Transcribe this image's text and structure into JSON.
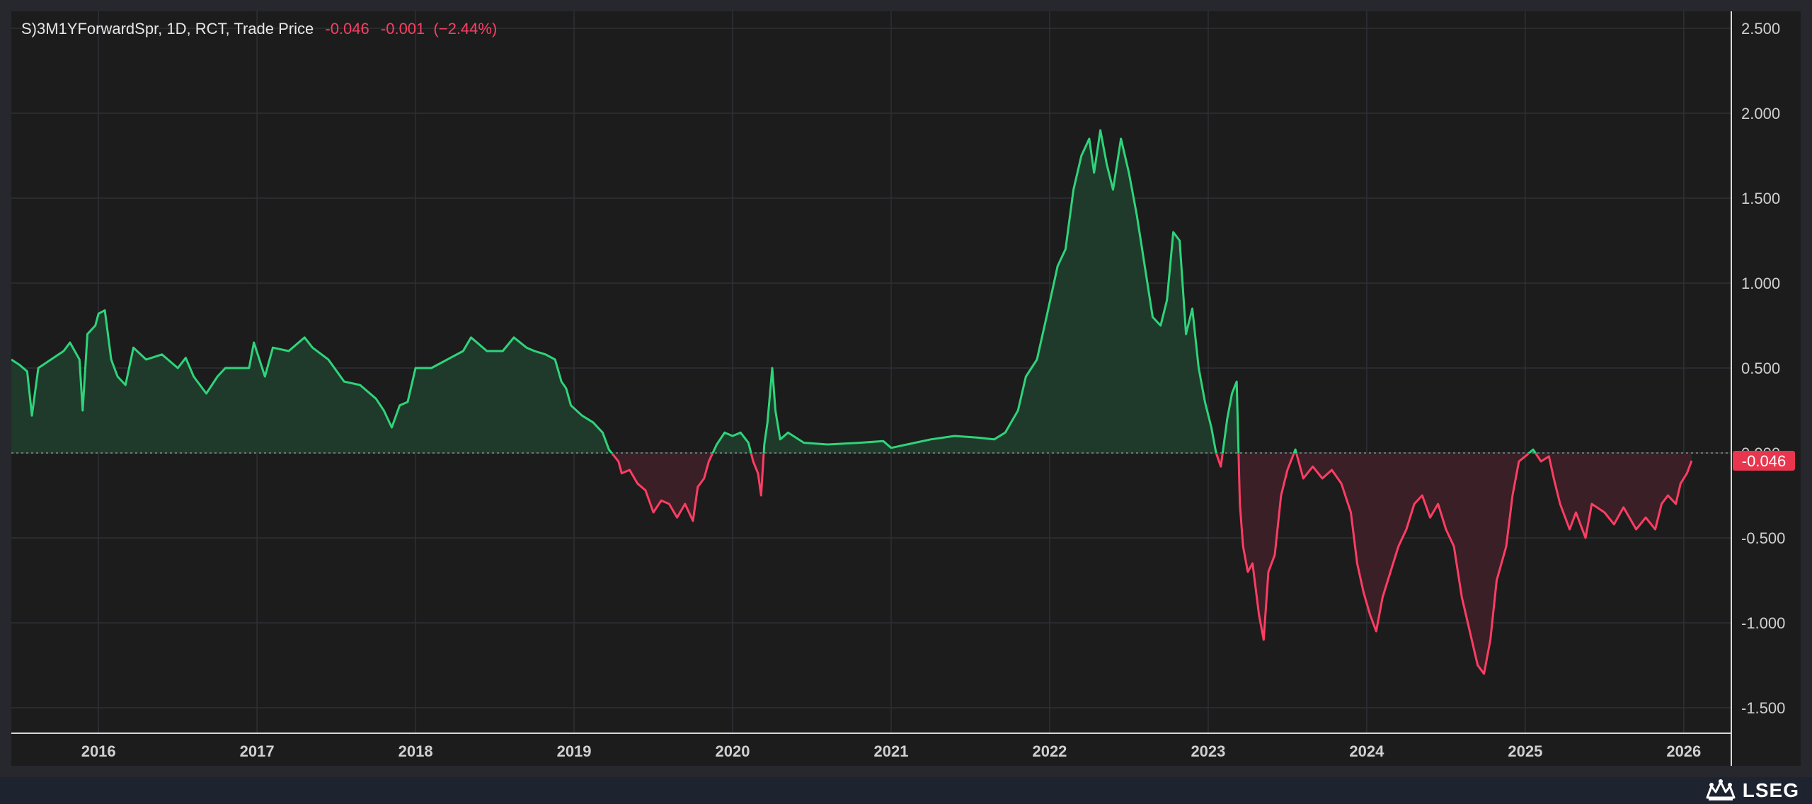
{
  "legend": {
    "symbol": "S)3M1YForwardSpr, 1D, RCT, Trade Price",
    "last": "-0.046",
    "change": "-0.001",
    "change_pct": "(−2.44%)"
  },
  "brand": {
    "name": "LSEG",
    "logo": "lseg-logo-icon"
  },
  "chart_data": {
    "type": "line",
    "title": "S)3M1YForwardSpr, 1D, RCT, Trade Price",
    "xlabel": "",
    "ylabel": "",
    "xlim": [
      2015.45,
      2026.3
    ],
    "ylim": [
      -1.65,
      2.6
    ],
    "x_ticks": [
      {
        "value": 2016,
        "label": "2016"
      },
      {
        "value": 2017,
        "label": "2017"
      },
      {
        "value": 2018,
        "label": "2018"
      },
      {
        "value": 2019,
        "label": "2019"
      },
      {
        "value": 2020,
        "label": "2020"
      },
      {
        "value": 2021,
        "label": "2021"
      },
      {
        "value": 2022,
        "label": "2022"
      },
      {
        "value": 2023,
        "label": "2023"
      },
      {
        "value": 2024,
        "label": "2024"
      },
      {
        "value": 2025,
        "label": "2025"
      },
      {
        "value": 2026,
        "label": "2026"
      }
    ],
    "y_ticks": [
      {
        "value": 2.5,
        "label": "2.500"
      },
      {
        "value": 2.0,
        "label": "2.000"
      },
      {
        "value": 1.5,
        "label": "1.500"
      },
      {
        "value": 1.0,
        "label": "1.000"
      },
      {
        "value": 0.5,
        "label": "0.500"
      },
      {
        "value": 0.0,
        "label": "0.000"
      },
      {
        "value": -0.5,
        "label": "-0.500"
      },
      {
        "value": -1.0,
        "label": "-1.000"
      },
      {
        "value": -1.5,
        "label": "-1.500"
      }
    ],
    "baseline": 0,
    "last_value": -0.046,
    "last_label": "-0.046",
    "grid": true,
    "colors": {
      "positive_line": "#2ed47a",
      "negative_line": "#ff3d63",
      "positive_fill": "#1f3a2b",
      "negative_fill": "#3a1f26",
      "grid": "#2e3035",
      "axis_text": "#d0d0d0",
      "last_badge": "#e8364f"
    },
    "series": [
      {
        "points": [
          [
            2015.45,
            0.55
          ],
          [
            2015.5,
            0.52
          ],
          [
            2015.55,
            0.48
          ],
          [
            2015.58,
            0.22
          ],
          [
            2015.62,
            0.5
          ],
          [
            2015.7,
            0.55
          ],
          [
            2015.78,
            0.6
          ],
          [
            2015.82,
            0.65
          ],
          [
            2015.88,
            0.55
          ],
          [
            2015.9,
            0.25
          ],
          [
            2015.93,
            0.7
          ],
          [
            2015.98,
            0.75
          ],
          [
            2016.0,
            0.82
          ],
          [
            2016.04,
            0.84
          ],
          [
            2016.08,
            0.55
          ],
          [
            2016.12,
            0.45
          ],
          [
            2016.17,
            0.4
          ],
          [
            2016.22,
            0.62
          ],
          [
            2016.3,
            0.55
          ],
          [
            2016.4,
            0.58
          ],
          [
            2016.5,
            0.5
          ],
          [
            2016.55,
            0.56
          ],
          [
            2016.6,
            0.45
          ],
          [
            2016.68,
            0.35
          ],
          [
            2016.75,
            0.45
          ],
          [
            2016.8,
            0.5
          ],
          [
            2016.88,
            0.5
          ],
          [
            2016.95,
            0.5
          ],
          [
            2016.98,
            0.65
          ],
          [
            2017.05,
            0.45
          ],
          [
            2017.1,
            0.62
          ],
          [
            2017.2,
            0.6
          ],
          [
            2017.3,
            0.68
          ],
          [
            2017.35,
            0.62
          ],
          [
            2017.45,
            0.55
          ],
          [
            2017.55,
            0.42
          ],
          [
            2017.65,
            0.4
          ],
          [
            2017.75,
            0.32
          ],
          [
            2017.8,
            0.25
          ],
          [
            2017.85,
            0.15
          ],
          [
            2017.9,
            0.28
          ],
          [
            2017.95,
            0.3
          ],
          [
            2018.0,
            0.5
          ],
          [
            2018.1,
            0.5
          ],
          [
            2018.2,
            0.55
          ],
          [
            2018.3,
            0.6
          ],
          [
            2018.35,
            0.68
          ],
          [
            2018.45,
            0.6
          ],
          [
            2018.55,
            0.6
          ],
          [
            2018.62,
            0.68
          ],
          [
            2018.7,
            0.62
          ],
          [
            2018.75,
            0.6
          ],
          [
            2018.82,
            0.58
          ],
          [
            2018.88,
            0.55
          ],
          [
            2018.92,
            0.42
          ],
          [
            2018.95,
            0.38
          ],
          [
            2018.98,
            0.28
          ],
          [
            2019.05,
            0.22
          ],
          [
            2019.12,
            0.18
          ],
          [
            2019.18,
            0.12
          ],
          [
            2019.22,
            0.02
          ],
          [
            2019.28,
            -0.05
          ],
          [
            2019.3,
            -0.12
          ],
          [
            2019.35,
            -0.1
          ],
          [
            2019.4,
            -0.18
          ],
          [
            2019.45,
            -0.22
          ],
          [
            2019.5,
            -0.35
          ],
          [
            2019.55,
            -0.28
          ],
          [
            2019.6,
            -0.3
          ],
          [
            2019.65,
            -0.38
          ],
          [
            2019.7,
            -0.3
          ],
          [
            2019.75,
            -0.4
          ],
          [
            2019.78,
            -0.2
          ],
          [
            2019.82,
            -0.15
          ],
          [
            2019.85,
            -0.05
          ],
          [
            2019.9,
            0.05
          ],
          [
            2019.95,
            0.12
          ],
          [
            2020.0,
            0.1
          ],
          [
            2020.05,
            0.12
          ],
          [
            2020.1,
            0.06
          ],
          [
            2020.13,
            -0.05
          ],
          [
            2020.16,
            -0.12
          ],
          [
            2020.18,
            -0.25
          ],
          [
            2020.2,
            0.05
          ],
          [
            2020.22,
            0.18
          ],
          [
            2020.25,
            0.5
          ],
          [
            2020.27,
            0.25
          ],
          [
            2020.3,
            0.08
          ],
          [
            2020.35,
            0.12
          ],
          [
            2020.45,
            0.06
          ],
          [
            2020.6,
            0.05
          ],
          [
            2020.8,
            0.06
          ],
          [
            2020.95,
            0.07
          ],
          [
            2021.0,
            0.03
          ],
          [
            2021.1,
            0.05
          ],
          [
            2021.25,
            0.08
          ],
          [
            2021.4,
            0.1
          ],
          [
            2021.55,
            0.09
          ],
          [
            2021.65,
            0.08
          ],
          [
            2021.72,
            0.12
          ],
          [
            2021.8,
            0.25
          ],
          [
            2021.85,
            0.45
          ],
          [
            2021.92,
            0.55
          ],
          [
            2021.98,
            0.8
          ],
          [
            2022.05,
            1.1
          ],
          [
            2022.1,
            1.2
          ],
          [
            2022.15,
            1.55
          ],
          [
            2022.2,
            1.75
          ],
          [
            2022.25,
            1.85
          ],
          [
            2022.28,
            1.65
          ],
          [
            2022.32,
            1.9
          ],
          [
            2022.36,
            1.7
          ],
          [
            2022.4,
            1.55
          ],
          [
            2022.45,
            1.85
          ],
          [
            2022.5,
            1.65
          ],
          [
            2022.55,
            1.4
          ],
          [
            2022.6,
            1.1
          ],
          [
            2022.65,
            0.8
          ],
          [
            2022.7,
            0.75
          ],
          [
            2022.74,
            0.9
          ],
          [
            2022.78,
            1.3
          ],
          [
            2022.82,
            1.25
          ],
          [
            2022.86,
            0.7
          ],
          [
            2022.9,
            0.85
          ],
          [
            2022.94,
            0.5
          ],
          [
            2022.98,
            0.3
          ],
          [
            2023.02,
            0.15
          ],
          [
            2023.05,
            0.0
          ],
          [
            2023.08,
            -0.08
          ],
          [
            2023.12,
            0.2
          ],
          [
            2023.15,
            0.35
          ],
          [
            2023.18,
            0.42
          ],
          [
            2023.2,
            -0.3
          ],
          [
            2023.22,
            -0.55
          ],
          [
            2023.25,
            -0.7
          ],
          [
            2023.28,
            -0.65
          ],
          [
            2023.32,
            -0.95
          ],
          [
            2023.35,
            -1.1
          ],
          [
            2023.38,
            -0.7
          ],
          [
            2023.42,
            -0.6
          ],
          [
            2023.46,
            -0.25
          ],
          [
            2023.5,
            -0.1
          ],
          [
            2023.55,
            0.02
          ],
          [
            2023.6,
            -0.15
          ],
          [
            2023.66,
            -0.08
          ],
          [
            2023.72,
            -0.15
          ],
          [
            2023.78,
            -0.1
          ],
          [
            2023.84,
            -0.18
          ],
          [
            2023.9,
            -0.35
          ],
          [
            2023.94,
            -0.65
          ],
          [
            2023.98,
            -0.82
          ],
          [
            2024.02,
            -0.95
          ],
          [
            2024.06,
            -1.05
          ],
          [
            2024.1,
            -0.85
          ],
          [
            2024.15,
            -0.7
          ],
          [
            2024.2,
            -0.55
          ],
          [
            2024.25,
            -0.45
          ],
          [
            2024.3,
            -0.3
          ],
          [
            2024.35,
            -0.25
          ],
          [
            2024.4,
            -0.38
          ],
          [
            2024.45,
            -0.3
          ],
          [
            2024.5,
            -0.45
          ],
          [
            2024.55,
            -0.55
          ],
          [
            2024.6,
            -0.85
          ],
          [
            2024.65,
            -1.05
          ],
          [
            2024.7,
            -1.25
          ],
          [
            2024.74,
            -1.3
          ],
          [
            2024.78,
            -1.1
          ],
          [
            2024.82,
            -0.75
          ],
          [
            2024.88,
            -0.55
          ],
          [
            2024.92,
            -0.25
          ],
          [
            2024.96,
            -0.05
          ],
          [
            2025.0,
            -0.02
          ],
          [
            2025.05,
            0.02
          ],
          [
            2025.1,
            -0.05
          ],
          [
            2025.15,
            -0.02
          ],
          [
            2025.18,
            -0.15
          ],
          [
            2025.22,
            -0.3
          ],
          [
            2025.28,
            -0.45
          ],
          [
            2025.32,
            -0.35
          ],
          [
            2025.38,
            -0.5
          ],
          [
            2025.42,
            -0.3
          ],
          [
            2025.5,
            -0.35
          ],
          [
            2025.56,
            -0.42
          ],
          [
            2025.62,
            -0.32
          ],
          [
            2025.7,
            -0.45
          ],
          [
            2025.76,
            -0.38
          ],
          [
            2025.82,
            -0.45
          ],
          [
            2025.86,
            -0.3
          ],
          [
            2025.9,
            -0.25
          ],
          [
            2025.95,
            -0.3
          ],
          [
            2025.98,
            -0.18
          ],
          [
            2026.02,
            -0.12
          ],
          [
            2026.05,
            -0.046
          ]
        ]
      }
    ]
  }
}
